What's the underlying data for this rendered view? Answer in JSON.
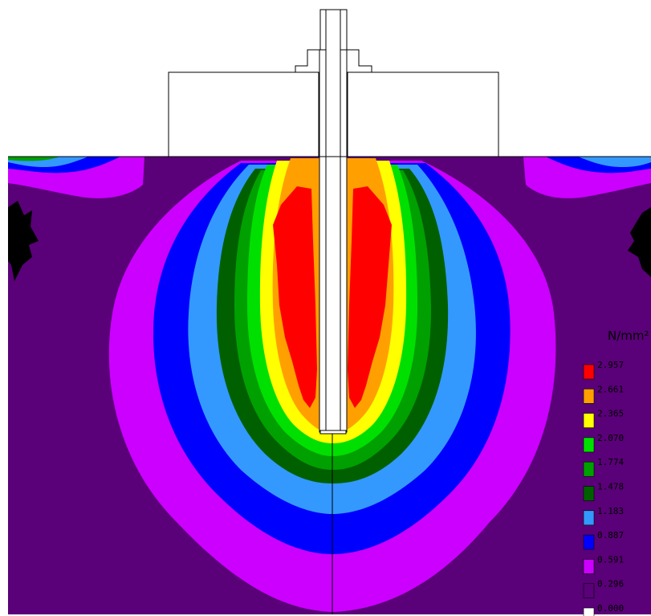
{
  "legend": {
    "unit": "N/mm²",
    "levels": [
      {
        "value": "2.957",
        "color": "#ff0000"
      },
      {
        "value": "2.661",
        "color": "#ffa000"
      },
      {
        "value": "2.365",
        "color": "#ffff00"
      },
      {
        "value": "2.070",
        "color": "#00e000"
      },
      {
        "value": "1.774",
        "color": "#00a000"
      },
      {
        "value": "1.478",
        "color": "#006000"
      },
      {
        "value": "1.183",
        "color": "#3399ff"
      },
      {
        "value": "0.887",
        "color": "#0000ff"
      },
      {
        "value": "0.591",
        "color": "#cc00ff"
      },
      {
        "value": "0.296",
        "color": "#5a0078"
      },
      {
        "value": "0.000",
        "color": "#ffffff"
      }
    ]
  },
  "colors": {
    "background_field": "#5a0078",
    "black_patch": "#000000",
    "outline": "#000000"
  }
}
